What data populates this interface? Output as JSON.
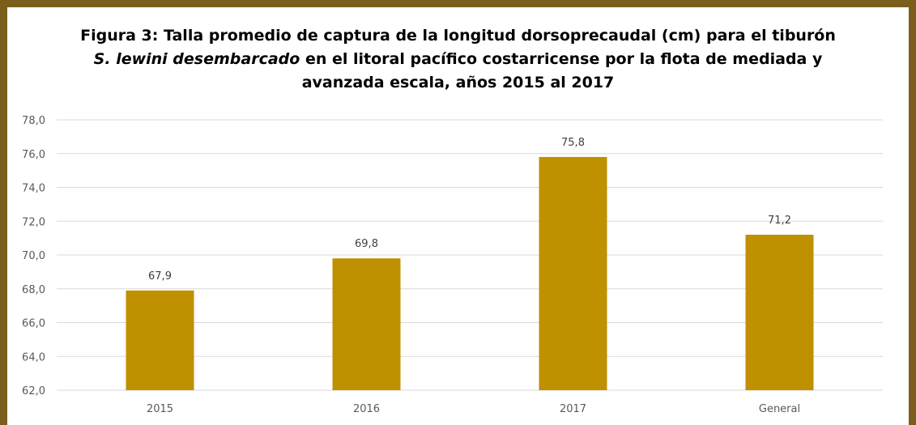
{
  "title": {
    "line1": "Figura 3: Talla promedio de captura de la longitud dorsoprecaudal (cm) para el tiburón",
    "line2_italic": "S. lewini desembarcado",
    "line2_rest": " en el litoral pacífico costarricense por la flota de mediada y",
    "line3": "avanzada escala, años 2015 al 2017"
  },
  "colors": {
    "bar": "#bf9000",
    "frame": "#7b5e1c",
    "grid": "#d9d9d9"
  },
  "chart_data": {
    "type": "bar",
    "title": "Figura 3: Talla promedio de captura de la longitud dorsoprecaudal (cm) para el tiburón S. lewini desembarcado en el litoral pacífico costarricense por la flota de mediada y avanzada escala, años 2015 al 2017",
    "categories": [
      "2015",
      "2016",
      "2017",
      "General"
    ],
    "values": [
      67.9,
      69.8,
      75.8,
      71.2
    ],
    "value_labels": [
      "67,9",
      "69,8",
      "75,8",
      "71,2"
    ],
    "ylim": [
      62,
      78
    ],
    "yticks": [
      62,
      64,
      66,
      68,
      70,
      72,
      74,
      76,
      78
    ],
    "ytick_labels": [
      "62,0",
      "64,0",
      "66,0",
      "68,0",
      "70,0",
      "72,0",
      "74,0",
      "76,0",
      "78,0"
    ],
    "grid": true,
    "legend": "none"
  }
}
